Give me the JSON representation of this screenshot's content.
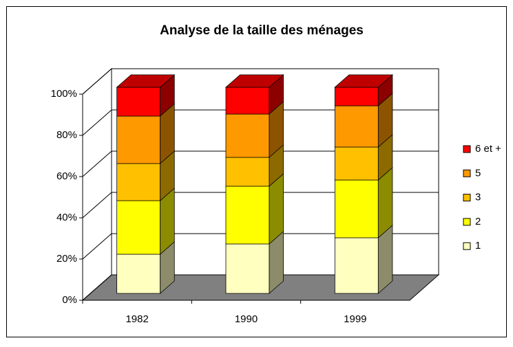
{
  "chart_data": {
    "type": "stacked_bar_3d",
    "title": "Analyse de la taille des ménages",
    "categories": [
      "1982",
      "1990",
      "1999"
    ],
    "series": [
      {
        "name": "1",
        "color": "#ffffc0",
        "values": [
          19,
          24,
          27
        ]
      },
      {
        "name": "2",
        "color": "#ffff00",
        "values": [
          26,
          28,
          28
        ]
      },
      {
        "name": "3",
        "color": "#ffc000",
        "values": [
          18,
          14,
          16
        ]
      },
      {
        "name": "5",
        "color": "#ff9900",
        "values": [
          23,
          21,
          20
        ]
      },
      {
        "name": "6 et +",
        "color": "#ff0000",
        "values": [
          14,
          13,
          9
        ]
      }
    ],
    "ylim": [
      0,
      100
    ],
    "yticks": [
      {
        "value": 0,
        "label": "0%"
      },
      {
        "value": 20,
        "label": "20%"
      },
      {
        "value": 40,
        "label": "40%"
      },
      {
        "value": 60,
        "label": "60%"
      },
      {
        "value": 80,
        "label": "80%"
      },
      {
        "value": 100,
        "label": "100%"
      }
    ],
    "grid": true,
    "legend": "right"
  }
}
